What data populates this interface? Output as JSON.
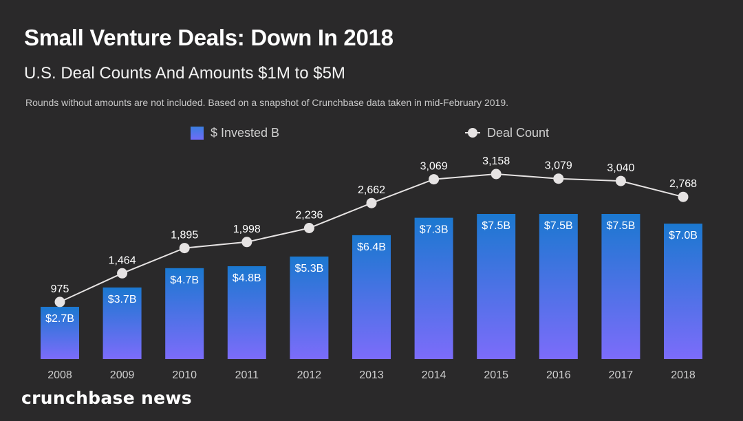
{
  "header": {
    "title": "Small Venture Deals: Down In 2018",
    "subtitle": "U.S. Deal Counts And Amounts $1M to $5M",
    "note": "Rounds without amounts are not included. Based on a snapshot of Crunchbase data taken in mid-February 2019."
  },
  "legend": {
    "bars_label": "$ Invested B",
    "line_label": "Deal Count"
  },
  "footer": {
    "brand": "crunchbase news"
  },
  "colors": {
    "background": "#2a292a",
    "bar_top": "#1b78d0",
    "bar_bottom": "#7c6cfa",
    "line": "#e6e3e3",
    "text": "#ffffff",
    "axis_text": "#cfcfcf"
  },
  "chart_data": {
    "type": "bar",
    "title": "Small Venture Deals: Down In 2018",
    "subtitle": "U.S. Deal Counts And Amounts $1M to $5M",
    "xlabel": "",
    "ylabel": "",
    "legend_position": "top",
    "grid": false,
    "categories": [
      "2008",
      "2009",
      "2010",
      "2011",
      "2012",
      "2013",
      "2014",
      "2015",
      "2016",
      "2017",
      "2018"
    ],
    "series": [
      {
        "name": "$ Invested B",
        "type": "bar",
        "values": [
          2.7,
          3.7,
          4.7,
          4.8,
          5.3,
          6.4,
          7.3,
          7.5,
          7.5,
          7.5,
          7.0
        ],
        "labels": [
          "$2.7B",
          "$3.7B",
          "$4.7B",
          "$4.8B",
          "$5.3B",
          "$6.4B",
          "$7.3B",
          "$7.5B",
          "$7.5B",
          "$7.5B",
          "$7.0B"
        ],
        "ylim": [
          0,
          7.5
        ]
      },
      {
        "name": "Deal Count",
        "type": "line",
        "values": [
          975,
          1464,
          1895,
          1998,
          2236,
          2662,
          3069,
          3158,
          3079,
          3040,
          2768
        ],
        "labels": [
          "975",
          "1,464",
          "1,895",
          "1,998",
          "2,236",
          "2,662",
          "3,069",
          "3,158",
          "3,079",
          "3,040",
          "2,768"
        ],
        "ylim": [
          0,
          3158
        ]
      }
    ]
  }
}
